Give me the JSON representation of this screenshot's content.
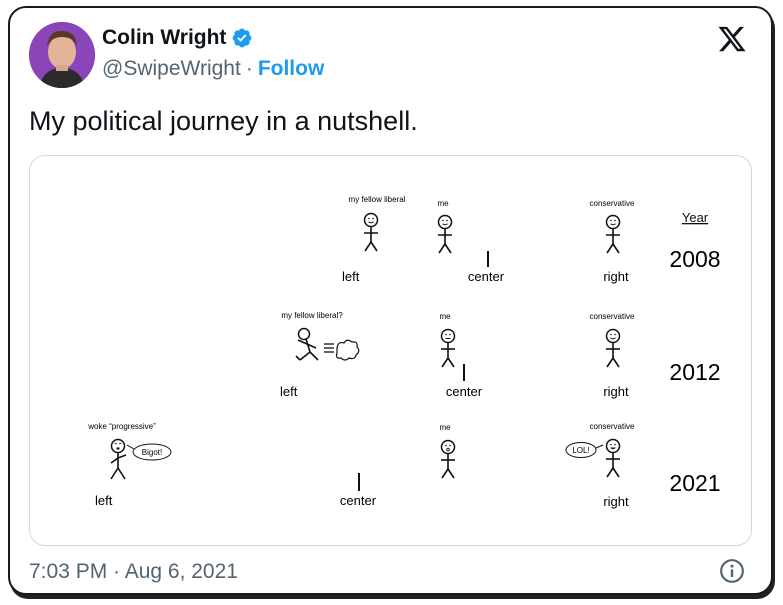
{
  "tweet": {
    "author_name": "Colin Wright",
    "handle": "@SwipeWright",
    "separator": "·",
    "follow_label": "Follow",
    "text": "My political journey in a nutshell.",
    "timestamp": "7:03 PM · Aug 6, 2021",
    "verified_color": "#1d9bf0",
    "icons": [
      "verified-badge-icon",
      "x-logo-icon",
      "info-icon"
    ]
  },
  "comic": {
    "year_header": "Year",
    "rows": [
      {
        "year": "2008",
        "left_label": "left",
        "center_label": "center",
        "right_label": "right",
        "figures": [
          {
            "label": "my fellow liberal",
            "face": "smile"
          },
          {
            "label": "me",
            "face": "smile"
          },
          {
            "label": "conservative",
            "face": "smile"
          }
        ]
      },
      {
        "year": "2012",
        "left_label": "left",
        "center_label": "center",
        "right_label": "right",
        "figures": [
          {
            "label": "my fellow liberal?",
            "face": "running"
          },
          {
            "label": "me",
            "face": "worried"
          },
          {
            "label": "conservative",
            "face": "smile"
          }
        ]
      },
      {
        "year": "2021",
        "left_label": "left",
        "center_label": "center",
        "right_label": "right",
        "speech_left": "Bigot!",
        "speech_right": "LOL!",
        "figures": [
          {
            "label": "woke “progressive”",
            "face": "angry"
          },
          {
            "label": "me",
            "face": "shocked"
          },
          {
            "label": "conservative",
            "face": "smile"
          }
        ]
      }
    ],
    "colors": {
      "left_line": "#3b6fd1",
      "right_line": "#e0453a"
    }
  }
}
